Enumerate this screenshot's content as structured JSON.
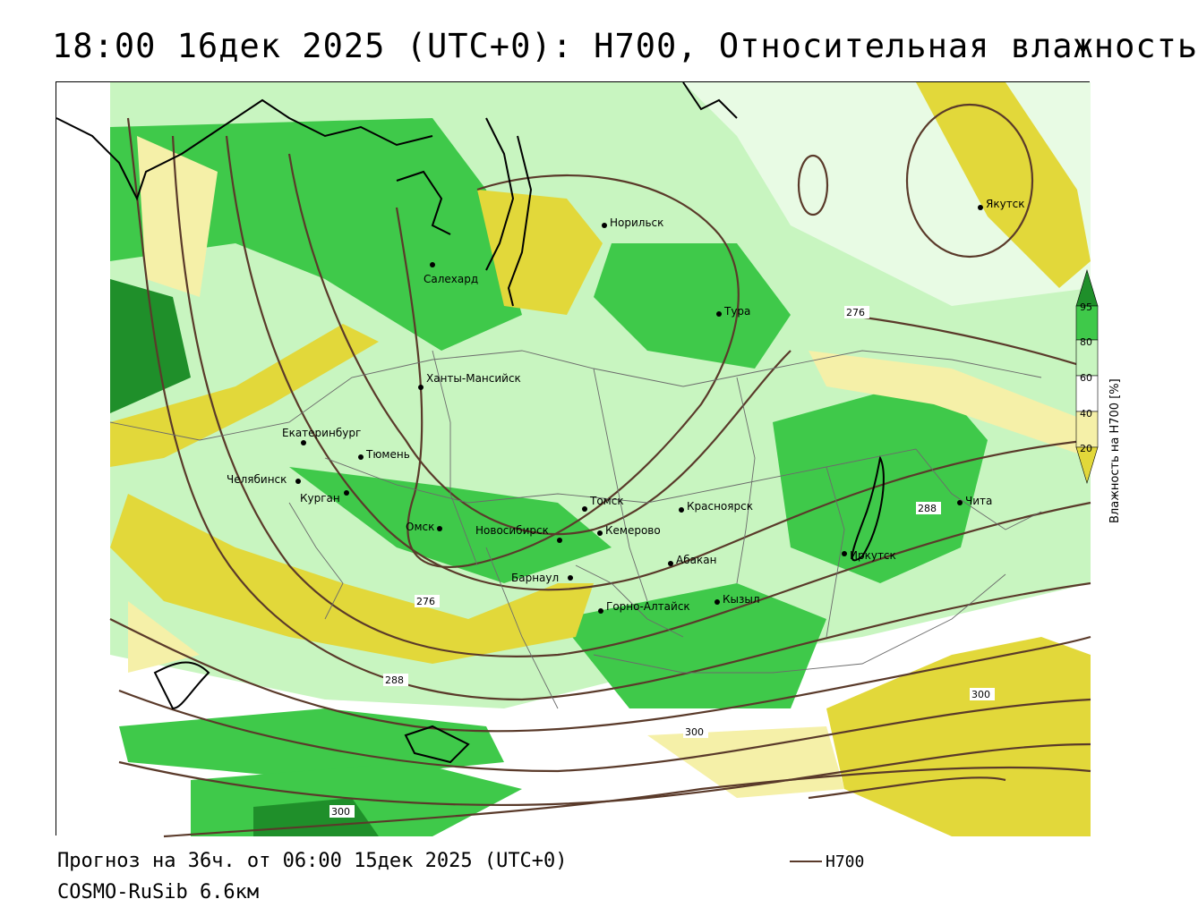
{
  "title": "18:00 16дек 2025 (UTC+0): H700, Относительная влажность",
  "footer": {
    "forecast": "Прогноз на 36ч. от 06:00 15дек 2025 (UTC+0)",
    "model": "COSMO-RuSib 6.6км",
    "legend_line_label": "H700"
  },
  "colorbar": {
    "title": "Влажность на H700 [%]",
    "ticks": [
      "95",
      "80",
      "60",
      "40",
      "20"
    ],
    "colors": {
      "dark_green": "#1f8f2a",
      "green": "#3fc94a",
      "light_green": "#c8f5c0",
      "white": "#ffffff",
      "light_yellow": "#f5f0a8",
      "yellow": "#e2d83a"
    }
  },
  "contour_labels": [
    "276",
    "276",
    "288",
    "288",
    "300",
    "300",
    "300"
  ],
  "cities": [
    {
      "name": "Норильск"
    },
    {
      "name": "Якутск"
    },
    {
      "name": "Салехард"
    },
    {
      "name": "Тура"
    },
    {
      "name": "Ханты-Мансийск"
    },
    {
      "name": "Екатеринбург"
    },
    {
      "name": "Тюмень"
    },
    {
      "name": "Челябинск"
    },
    {
      "name": "Курган"
    },
    {
      "name": "Омск"
    },
    {
      "name": "Томск"
    },
    {
      "name": "Красноярск"
    },
    {
      "name": "Новосибирск"
    },
    {
      "name": "Кемерово"
    },
    {
      "name": "Абакан"
    },
    {
      "name": "Барнаул"
    },
    {
      "name": "Кызыл"
    },
    {
      "name": "Горно-Алтайск"
    },
    {
      "name": "Иркутск"
    },
    {
      "name": "Чита"
    }
  ]
}
